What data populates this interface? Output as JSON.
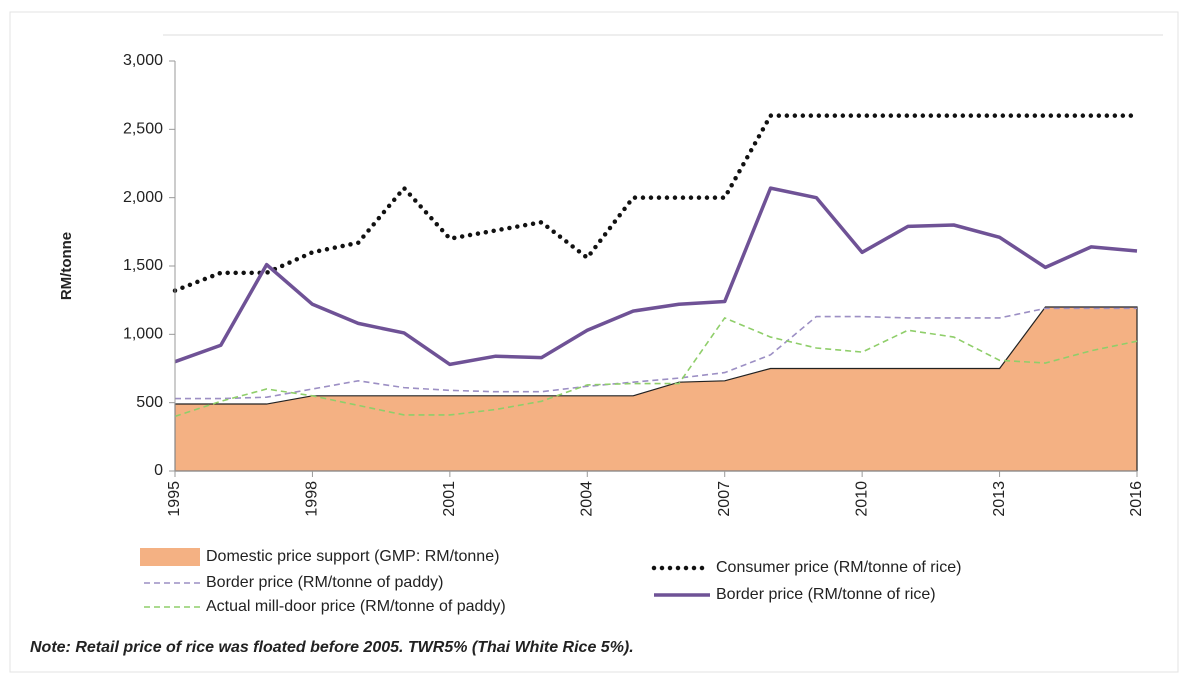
{
  "chart_data": {
    "type": "line",
    "y_label": "RM/tonne",
    "note": "Note: Retail price of rice was floated before 2005. TWR5% (Thai White Rice 5%).",
    "x": [
      1995,
      1996,
      1997,
      1998,
      1999,
      2000,
      2001,
      2002,
      2003,
      2004,
      2005,
      2006,
      2007,
      2008,
      2009,
      2010,
      2011,
      2012,
      2013,
      2014,
      2015,
      2016
    ],
    "xlim": [
      1995,
      2016
    ],
    "xticks": [
      1995,
      1998,
      2001,
      2004,
      2007,
      2010,
      2013,
      2016
    ],
    "ylim": [
      0,
      3000
    ],
    "yticks": [
      0,
      500,
      {
        "value": 1000,
        "label": "1,000"
      },
      {
        "value": 1500,
        "label": "1,500"
      },
      {
        "value": 2000,
        "label": "2,000"
      },
      {
        "value": 2500,
        "label": "2,500"
      },
      {
        "value": 3000,
        "label": "3,000"
      }
    ],
    "series": [
      {
        "name": "Domestic price support (GMP: RM/tonne)",
        "color": "#f4b183",
        "style": "area",
        "values": [
          490,
          490,
          490,
          550,
          550,
          550,
          550,
          550,
          550,
          550,
          550,
          650,
          660,
          750,
          750,
          750,
          750,
          750,
          750,
          1200,
          1200,
          1200
        ]
      },
      {
        "name": "Border price (RM/tonne of paddy)",
        "color": "#9c8fc4",
        "style": "dashed",
        "values": [
          530,
          530,
          540,
          600,
          660,
          610,
          590,
          580,
          580,
          620,
          650,
          680,
          720,
          850,
          1130,
          1130,
          1120,
          1120,
          1120,
          1190,
          1190,
          1190
        ]
      },
      {
        "name": "Actual mill-door price (RM/tonne of paddy)",
        "color": "#8fce6a",
        "style": "dashed",
        "values": [
          400,
          510,
          600,
          550,
          480,
          410,
          410,
          450,
          510,
          630,
          640,
          640,
          1120,
          980,
          900,
          870,
          1030,
          980,
          810,
          790,
          880,
          950
        ]
      },
      {
        "name": "Consumer price (RM/tonne of rice)",
        "color": "#111111",
        "style": "dotted",
        "values": [
          1320,
          1450,
          1450,
          1600,
          1670,
          2070,
          1700,
          1760,
          1820,
          1560,
          2000,
          2000,
          2000,
          2600,
          2600,
          2600,
          2600,
          2600,
          2600,
          2600,
          2600,
          2600
        ]
      },
      {
        "name": "Border price (RM/tonne of rice)",
        "color": "#6f5296",
        "style": "thick",
        "values": [
          800,
          920,
          1510,
          1220,
          1080,
          1010,
          780,
          840,
          830,
          1030,
          1170,
          1220,
          1240,
          2070,
          2000,
          1600,
          1790,
          1800,
          1710,
          1490,
          1640,
          1610
        ]
      }
    ]
  }
}
